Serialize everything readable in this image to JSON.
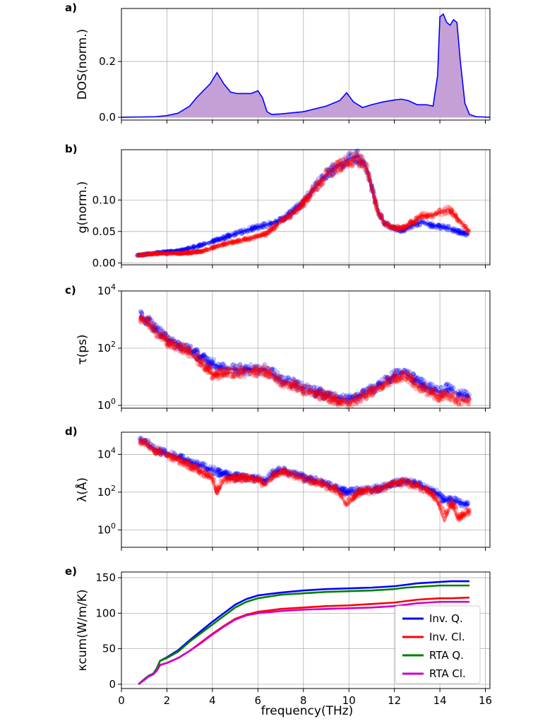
{
  "figure": {
    "xlabel": "frequency(THz)"
  },
  "chart_data": [
    {
      "panel": "a)",
      "type": "area",
      "ylabel": "DOS(norm.)",
      "xlim": [
        0,
        16.2
      ],
      "ylim": [
        -0.01,
        0.39
      ],
      "yticks": [
        0.0,
        0.2
      ],
      "ytick_labels": [
        "0.0",
        "0.2"
      ],
      "color": "#0000ff",
      "fill": "#c4a0d6",
      "series": [
        {
          "x": [
            0,
            1.5,
            2.0,
            2.5,
            3.0,
            3.3,
            3.6,
            3.9,
            4.2,
            4.5,
            4.8,
            5.1,
            5.4,
            5.7,
            6.0,
            6.2,
            6.4,
            6.6,
            7.0,
            8.0,
            9.0,
            9.6,
            9.9,
            10.2,
            10.6,
            11.0,
            11.5,
            12.0,
            12.3,
            12.6,
            13.0,
            13.4,
            13.7,
            13.9,
            14.0,
            14.15,
            14.3,
            14.45,
            14.6,
            14.75,
            14.9,
            15.1,
            15.3,
            15.6,
            16.2
          ],
          "y": [
            0,
            0.002,
            0.006,
            0.015,
            0.04,
            0.07,
            0.095,
            0.12,
            0.16,
            0.12,
            0.09,
            0.085,
            0.085,
            0.085,
            0.095,
            0.07,
            0.02,
            0.01,
            0.012,
            0.02,
            0.04,
            0.06,
            0.088,
            0.055,
            0.035,
            0.045,
            0.055,
            0.062,
            0.065,
            0.06,
            0.045,
            0.045,
            0.04,
            0.15,
            0.36,
            0.37,
            0.34,
            0.33,
            0.35,
            0.34,
            0.2,
            0.05,
            0.01,
            0.002,
            0
          ]
        }
      ]
    },
    {
      "panel": "b)",
      "type": "scatter",
      "ylabel": "g(norm.)",
      "xlim": [
        0,
        16.2
      ],
      "ylim": [
        -0.003,
        0.18
      ],
      "yticks": [
        0.0,
        0.05,
        0.1
      ],
      "ytick_labels": [
        "0.00",
        "0.05",
        "0.10"
      ],
      "series": [
        {
          "color": "#0000ff",
          "x": [
            0.7,
            1.5,
            2.5,
            3.5,
            4.5,
            5.5,
            6.3,
            7.0,
            7.5,
            8.0,
            8.5,
            9.0,
            9.5,
            10.0,
            10.4,
            10.8,
            11.0,
            11.3,
            11.6,
            12.0,
            12.4,
            12.8,
            13.2,
            13.6,
            14.0,
            14.4,
            14.8,
            15.3
          ],
          "y": [
            0.012,
            0.016,
            0.019,
            0.028,
            0.04,
            0.052,
            0.06,
            0.068,
            0.08,
            0.098,
            0.12,
            0.14,
            0.155,
            0.165,
            0.17,
            0.15,
            0.12,
            0.08,
            0.062,
            0.055,
            0.052,
            0.06,
            0.065,
            0.06,
            0.058,
            0.055,
            0.05,
            0.045
          ]
        },
        {
          "color": "#ff0000",
          "x": [
            0.7,
            1.5,
            2.5,
            3.5,
            4.5,
            5.5,
            6.3,
            7.0,
            7.5,
            8.0,
            8.5,
            9.0,
            9.5,
            10.0,
            10.4,
            10.8,
            11.0,
            11.3,
            11.6,
            12.0,
            12.4,
            12.8,
            13.2,
            13.6,
            14.0,
            14.4,
            14.8,
            15.3
          ],
          "y": [
            0.012,
            0.015,
            0.015,
            0.018,
            0.03,
            0.038,
            0.045,
            0.065,
            0.078,
            0.095,
            0.118,
            0.14,
            0.153,
            0.162,
            0.165,
            0.148,
            0.118,
            0.078,
            0.062,
            0.056,
            0.055,
            0.065,
            0.075,
            0.075,
            0.08,
            0.085,
            0.07,
            0.05
          ]
        }
      ]
    },
    {
      "panel": "c)",
      "type": "scatter",
      "ylabel": "τ(ps)",
      "yscale": "log",
      "xlim": [
        0,
        16.2
      ],
      "ylim": [
        0.8,
        10000
      ],
      "yticks": [
        1,
        100,
        10000
      ],
      "ytick_labels": [
        "10^0",
        "10^2",
        "10^4"
      ],
      "series": [
        {
          "color": "#0000ff",
          "x": [
            0.8,
            1.5,
            2.0,
            2.5,
            3.0,
            3.5,
            4.0,
            4.5,
            5.0,
            5.5,
            6.0,
            6.3,
            7.0,
            8.0,
            9.0,
            9.5,
            10.0,
            10.5,
            11.0,
            11.5,
            12.0,
            12.4,
            13.0,
            13.5,
            14.0,
            14.4,
            14.8,
            15.3
          ],
          "y": [
            1400,
            450,
            200,
            130,
            85,
            45,
            28,
            20,
            18,
            18,
            18,
            18,
            8,
            4,
            2.2,
            1.8,
            1.6,
            2.2,
            3.5,
            6,
            11,
            14,
            7,
            4,
            3,
            4,
            2.5,
            2
          ]
        },
        {
          "color": "#ff0000",
          "x": [
            0.8,
            1.5,
            2.0,
            2.5,
            3.0,
            3.5,
            4.0,
            4.5,
            5.0,
            5.5,
            6.0,
            6.3,
            7.0,
            8.0,
            9.0,
            9.5,
            10.0,
            10.5,
            11.0,
            11.5,
            12.0,
            12.4,
            13.0,
            13.5,
            14.0,
            14.4,
            14.8,
            15.3
          ],
          "y": [
            1200,
            380,
            170,
            110,
            70,
            30,
            12,
            13,
            14,
            15,
            16,
            16,
            7,
            3.5,
            2,
            1.5,
            1.2,
            1.9,
            3,
            5,
            9,
            11,
            5,
            3,
            2,
            2.2,
            1.6,
            1.3
          ]
        }
      ]
    },
    {
      "panel": "d)",
      "type": "scatter",
      "ylabel": "λ(Å)",
      "yscale": "log",
      "xlim": [
        0,
        16.2
      ],
      "ylim": [
        0.12,
        150000
      ],
      "yticks": [
        1,
        100,
        10000
      ],
      "ytick_labels": [
        "10^0",
        "10^2",
        "10^4"
      ],
      "series": [
        {
          "color": "#0000ff",
          "x": [
            0.8,
            1.5,
            2.0,
            2.5,
            3.0,
            3.5,
            4.0,
            4.2,
            4.5,
            5.0,
            5.5,
            6.0,
            6.3,
            7.0,
            8.0,
            9.0,
            9.5,
            9.9,
            10.5,
            11.0,
            11.5,
            12.0,
            12.5,
            13.0,
            13.5,
            13.9,
            14.2,
            14.5,
            14.8,
            15.3
          ],
          "y": [
            60000,
            18000,
            11000,
            7000,
            4000,
            2500,
            1500,
            1200,
            900,
            700,
            600,
            500,
            400,
            1500,
            600,
            250,
            150,
            100,
            120,
            140,
            180,
            320,
            380,
            250,
            150,
            80,
            35,
            40,
            30,
            20
          ]
        },
        {
          "color": "#ff0000",
          "x": [
            0.8,
            1.5,
            2.0,
            2.5,
            3.0,
            3.5,
            4.0,
            4.2,
            4.5,
            5.0,
            5.5,
            6.0,
            6.3,
            7.0,
            8.0,
            9.0,
            9.5,
            9.9,
            10.5,
            11.0,
            11.5,
            12.0,
            12.5,
            13.0,
            13.5,
            13.9,
            14.2,
            14.5,
            14.8,
            15.3
          ],
          "y": [
            50000,
            15000,
            9000,
            5000,
            2500,
            1200,
            500,
            80,
            450,
            550,
            550,
            450,
            250,
            1200,
            500,
            220,
            120,
            20,
            100,
            120,
            160,
            280,
            320,
            200,
            120,
            30,
            3,
            25,
            4,
            10
          ]
        }
      ]
    },
    {
      "panel": "e)",
      "type": "line",
      "ylabel": "κcum(W/m/K)",
      "xlim": [
        0,
        16.2
      ],
      "ylim": [
        -6,
        158
      ],
      "yticks": [
        0,
        50,
        100,
        150
      ],
      "ytick_labels": [
        "0",
        "50",
        "100",
        "150"
      ],
      "xticks": [
        0,
        2,
        4,
        6,
        8,
        10,
        12,
        14,
        16
      ],
      "xtick_labels": [
        "0",
        "2",
        "4",
        "6",
        "8",
        "10",
        "12",
        "14",
        "16"
      ],
      "legend_position": "lower-right",
      "series": [
        {
          "name": "Inv. Q.",
          "color": "#0000ff",
          "x": [
            0.75,
            1.0,
            1.2,
            1.4,
            1.55,
            1.7,
            2.0,
            2.5,
            3.0,
            3.5,
            4.0,
            4.5,
            5.0,
            5.5,
            6.0,
            7.0,
            8.0,
            9.0,
            10.0,
            11.0,
            11.5,
            12.0,
            12.5,
            13.0,
            13.5,
            14.0,
            14.5,
            15.3
          ],
          "y": [
            0,
            7,
            12,
            15,
            22,
            33,
            38,
            48,
            62,
            75,
            88,
            100,
            112,
            120,
            125,
            129,
            132,
            134,
            135,
            136,
            137,
            138,
            140,
            142,
            143,
            144,
            145,
            145
          ]
        },
        {
          "name": "Inv. Cl.",
          "color": "#ff0000",
          "x": [
            0.75,
            1.0,
            1.2,
            1.4,
            1.55,
            1.7,
            2.0,
            2.5,
            3.0,
            3.5,
            4.0,
            4.5,
            5.0,
            5.5,
            6.0,
            7.0,
            8.0,
            9.0,
            10.0,
            11.0,
            11.5,
            12.0,
            12.5,
            13.0,
            13.5,
            14.0,
            14.5,
            15.3
          ],
          "y": [
            0,
            6,
            11,
            14,
            19,
            27,
            30,
            37,
            47,
            59,
            71,
            82,
            92,
            98,
            102,
            106,
            108,
            110,
            111,
            113,
            114,
            115,
            117,
            119,
            120,
            121,
            121,
            122
          ]
        },
        {
          "name": "RTA Q.",
          "color": "#008000",
          "x": [
            0.75,
            1.0,
            1.2,
            1.4,
            1.55,
            1.7,
            2.0,
            2.5,
            3.0,
            3.5,
            4.0,
            4.5,
            5.0,
            5.5,
            6.0,
            7.0,
            8.0,
            9.0,
            10.0,
            11.0,
            11.5,
            12.0,
            12.5,
            13.0,
            13.5,
            14.0,
            14.5,
            15.3
          ],
          "y": [
            0,
            7,
            12,
            15,
            22,
            33,
            37,
            46,
            60,
            72,
            84,
            96,
            108,
            116,
            121,
            126,
            128,
            130,
            131,
            132,
            133,
            134,
            136,
            137,
            138,
            139,
            139,
            139
          ]
        },
        {
          "name": "RTA Cl.",
          "color": "#cc00cc",
          "x": [
            0.75,
            1.0,
            1.2,
            1.4,
            1.55,
            1.7,
            2.0,
            2.5,
            3.0,
            3.5,
            4.0,
            4.5,
            5.0,
            5.5,
            6.0,
            7.0,
            8.0,
            9.0,
            10.0,
            11.0,
            11.5,
            12.0,
            12.5,
            13.0,
            13.5,
            14.0,
            14.5,
            15.3
          ],
          "y": [
            0,
            6,
            11,
            14,
            19,
            27,
            30,
            37,
            47,
            58,
            70,
            81,
            91,
            97,
            100,
            103,
            105,
            106,
            107,
            108,
            109,
            110,
            112,
            114,
            115,
            116,
            116,
            116
          ]
        }
      ]
    }
  ]
}
